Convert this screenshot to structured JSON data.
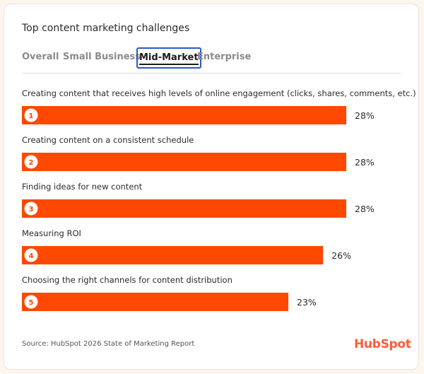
{
  "title": "Top content marketing challenges",
  "tabs": [
    {
      "label": "Overall",
      "active": false
    },
    {
      "label": "Small Business",
      "active": false
    },
    {
      "label": "Mid-Market",
      "active": true
    },
    {
      "label": "Enterprise",
      "active": false
    }
  ],
  "source": "Source: HubSpot 2026 State of Marketing Report",
  "logo": "HubSpot",
  "colors": {
    "bar": "#ff4800",
    "badge_text": "#ff4800",
    "accent_focus": "#2b57c8"
  },
  "chart_data": {
    "type": "bar",
    "orientation": "horizontal",
    "categories": [
      "Creating content that receives high levels of online engagement (clicks, shares, comments, etc.)",
      "Creating content on a consistent schedule",
      "Finding ideas for new content",
      "Measuring ROI",
      "Choosing the right channels for content distribution"
    ],
    "ranks": [
      "1",
      "2",
      "3",
      "4",
      "5"
    ],
    "values": [
      28,
      28,
      28,
      26,
      23
    ],
    "value_labels": [
      "28%",
      "28%",
      "28%",
      "26%",
      "23%"
    ],
    "unit": "%",
    "xlim": [
      0,
      28
    ],
    "grid": false,
    "legend": "none"
  }
}
